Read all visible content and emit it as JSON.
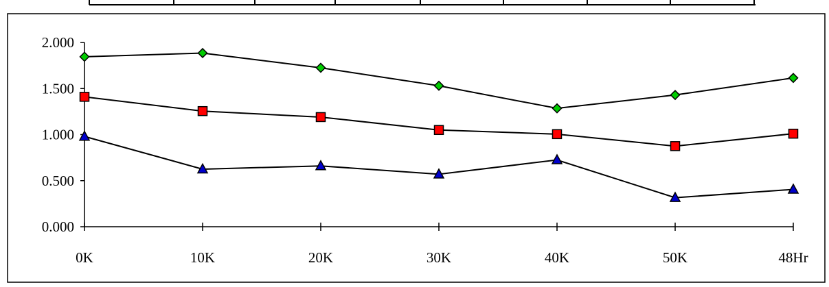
{
  "chart_data": {
    "type": "line",
    "categories": [
      "0K",
      "10K",
      "20K",
      "30K",
      "40K",
      "50K",
      "48Hr"
    ],
    "series": [
      {
        "marker": "diamond",
        "color": "#00cc00",
        "values": [
          1.845,
          1.885,
          1.725,
          1.53,
          1.285,
          1.43,
          1.615
        ]
      },
      {
        "marker": "square",
        "color": "#ff0000",
        "values": [
          1.41,
          1.255,
          1.19,
          1.05,
          1.005,
          0.875,
          1.01
        ]
      },
      {
        "marker": "triangle",
        "color": "#0000cc",
        "values": [
          0.98,
          0.625,
          0.66,
          0.57,
          0.725,
          0.315,
          0.405
        ]
      }
    ],
    "yticks": [
      "0.000",
      "0.500",
      "1.000",
      "1.500",
      "2.000"
    ],
    "ylim": [
      0,
      2.0
    ],
    "title": "",
    "xlabel": "",
    "ylabel": "",
    "grid": false,
    "legend": "none"
  }
}
